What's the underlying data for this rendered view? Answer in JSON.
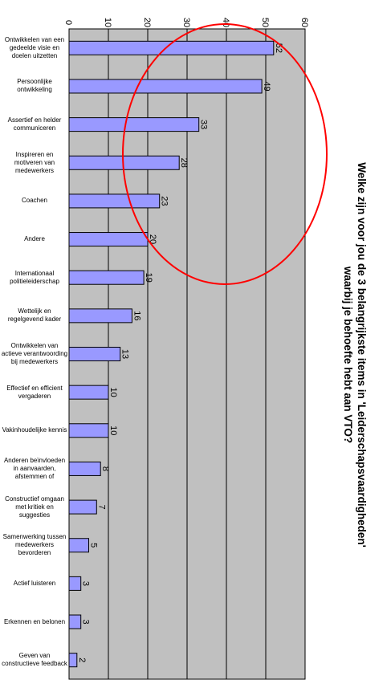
{
  "chart_data": {
    "type": "bar",
    "orientation": "horizontal",
    "title": "Welke zijn voor jou de 3 belangrijkste items in 'Leiderschapsvaardigheden' waarbij je behoefte hebt aan VTO?",
    "title_lines": [
      "Welke zijn voor jou de 3 belangrijkste items in 'Leiderschapsvaardigheden'",
      "waarbij je behoefte hebt aan VTO?"
    ],
    "categories": [
      "Ontwikkelen van een gedeelde visie en doelen uitzetten",
      "Persoonlijke ontwikkeling",
      "Assertief en helder communiceren",
      "Inspireren en motiveren van medewerkers",
      "Coachen",
      "Andere",
      "Internationaal politieleiderschap",
      "Wettelijk en regelgevend kader",
      "Ontwikkelen van actieve verantwoording bij medewerkers",
      "Effectief en efficient vergaderen",
      "Vakinhoudelijke kennis",
      "Anderen beïnvloeden in aanvaarden, afstemmen of",
      "Constructief omgaan met kritiek en suggesties",
      "Samenwerking tussen medewerkers bevorderen",
      "Actief luisteren",
      "Erkennen en belonen",
      "Geven van constructieve feedback"
    ],
    "values": [
      52,
      49,
      33,
      28,
      23,
      20,
      19,
      16,
      13,
      10,
      10,
      8,
      7,
      5,
      3,
      3,
      2
    ],
    "data_labels": [
      "52",
      "49",
      "33",
      "28",
      "23",
      "20",
      "19",
      "16",
      "13",
      "10",
      "10",
      "8",
      "7",
      "5",
      "3",
      "3",
      "2"
    ],
    "ticks": [
      "0",
      "10",
      "20",
      "30",
      "40",
      "50",
      "60"
    ],
    "xlim": [
      0,
      60
    ],
    "grid": true,
    "legend": "none",
    "rotation": "chart rotated 90 degrees clockwise",
    "annotation": "red ellipse highlighting the top six items",
    "colors": {
      "bar_fill": "#9999ff",
      "bar_stroke": "#000000",
      "plot_background": "#c0c0c0",
      "gridline": "#000000",
      "annotation": "#ff0000"
    }
  }
}
